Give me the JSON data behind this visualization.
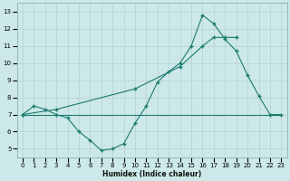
{
  "bg_color": "#cce8e8",
  "grid_color": "#b8d4d4",
  "line_color": "#1a7a6e",
  "xlabel": "Humidex (Indice chaleur)",
  "xlim": [
    -0.5,
    23.5
  ],
  "ylim": [
    4.5,
    13.5
  ],
  "yticks": [
    5,
    6,
    7,
    8,
    9,
    10,
    11,
    12,
    13
  ],
  "xticks": [
    0,
    1,
    2,
    3,
    4,
    5,
    6,
    7,
    8,
    9,
    10,
    11,
    12,
    13,
    14,
    15,
    16,
    17,
    18,
    19,
    20,
    21,
    22,
    23
  ],
  "line1_x": [
    0,
    1,
    2,
    3,
    4,
    5,
    6,
    7,
    8,
    9,
    10,
    11,
    12,
    13,
    14,
    15,
    16,
    17,
    18,
    19,
    20,
    21,
    22,
    23
  ],
  "line1_y": [
    7.0,
    7.5,
    7.3,
    7.0,
    6.8,
    6.0,
    5.5,
    4.9,
    5.0,
    5.3,
    6.5,
    7.5,
    8.9,
    9.5,
    10.0,
    11.0,
    12.8,
    12.3,
    11.4,
    10.7,
    9.3,
    8.1,
    7.0,
    7.0
  ],
  "line2_x": [
    0,
    3,
    10,
    14,
    16,
    17,
    18,
    19
  ],
  "line2_y": [
    7.0,
    7.3,
    8.5,
    9.8,
    11.0,
    11.5,
    11.5,
    11.5
  ],
  "line3_x": [
    0,
    23
  ],
  "line3_y": [
    7.0,
    7.0
  ]
}
